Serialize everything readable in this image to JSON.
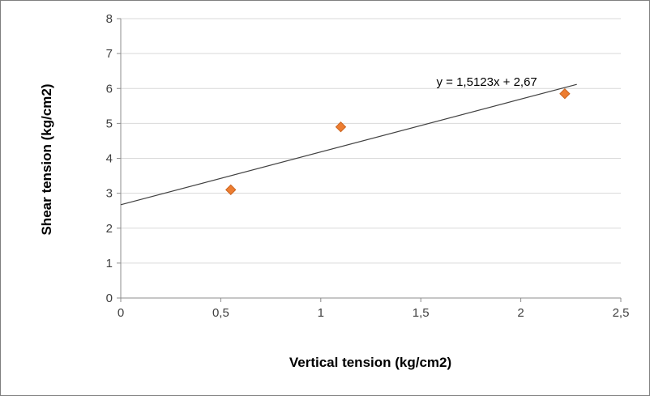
{
  "chart_data": {
    "type": "scatter",
    "title": "",
    "xlabel": "Vertical tension (kg/cm2)",
    "ylabel": "Shear tension (kg/cm2)",
    "xlim": [
      0,
      2.5
    ],
    "ylim": [
      0,
      8
    ],
    "x_ticks": [
      0,
      0.5,
      1,
      1.5,
      2,
      2.5
    ],
    "x_tick_labels": [
      "0",
      "0,5",
      "1",
      "1,5",
      "2",
      "2,5"
    ],
    "y_ticks": [
      0,
      1,
      2,
      3,
      4,
      5,
      6,
      7,
      8
    ],
    "y_tick_labels": [
      "0",
      "1",
      "2",
      "3",
      "4",
      "5",
      "6",
      "7",
      "8"
    ],
    "grid": "horizontal",
    "legend": "none",
    "points": [
      {
        "x": 0.55,
        "y": 3.1
      },
      {
        "x": 1.1,
        "y": 4.9
      },
      {
        "x": 2.22,
        "y": 5.85
      }
    ],
    "trendline": {
      "slope": 1.5123,
      "intercept": 2.67,
      "x_start": 0,
      "x_end": 2.28,
      "equation_label": "y = 1,5123x + 2,67",
      "label_x": 1.83,
      "label_y": 6.07
    },
    "colors": {
      "marker": "#ED7D31",
      "marker_edge": "#c9631f",
      "trendline": "#404040",
      "gridline": "#D9D9D9",
      "axis": "#8c8c8c",
      "tick_label": "#3f3f3f",
      "equation_text": "#000000"
    }
  }
}
